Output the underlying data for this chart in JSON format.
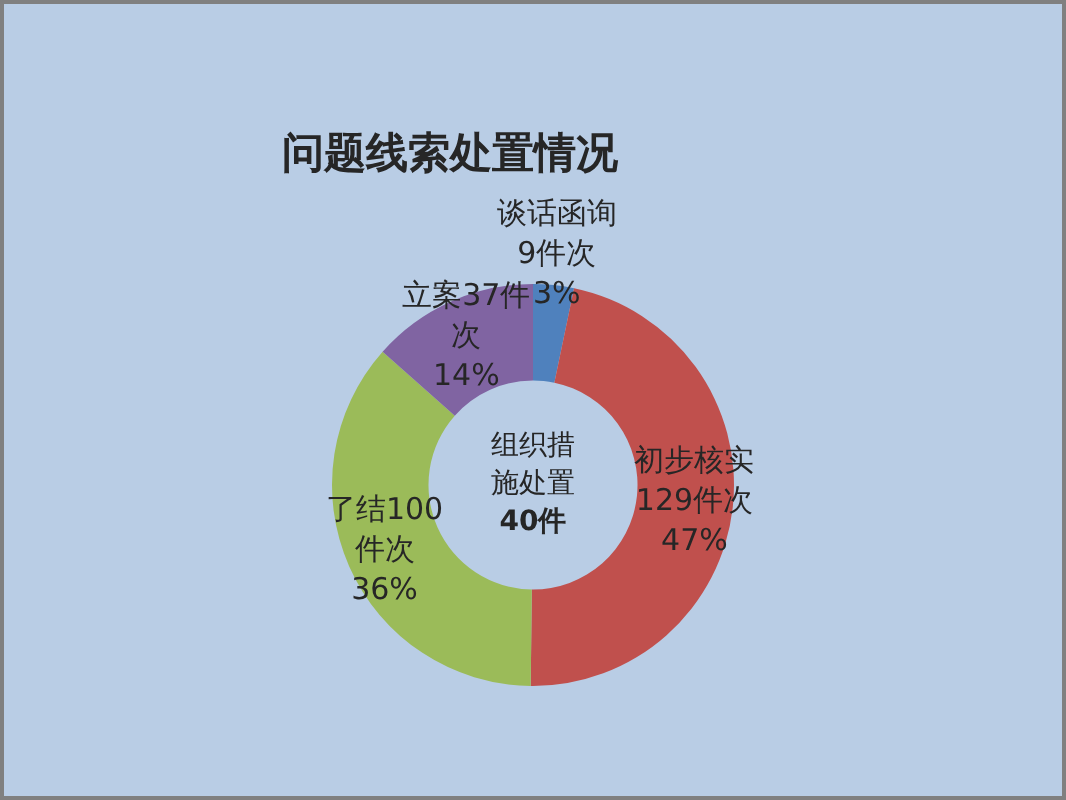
{
  "chart_data": {
    "type": "donut",
    "title": "问题线索处置情况",
    "categories": [
      "谈话函询",
      "初步核实",
      "了结",
      "立案"
    ],
    "values": [
      9,
      129,
      100,
      37
    ],
    "colors": [
      "#4f81bd",
      "#c0504d",
      "#9bbb59",
      "#8064a2"
    ],
    "value_labels": [
      "9件次 3%",
      "129件次 47%",
      "100件次 36%",
      "37件次 14%"
    ],
    "annotations": [
      "组织措施处置 40件"
    ]
  }
}
